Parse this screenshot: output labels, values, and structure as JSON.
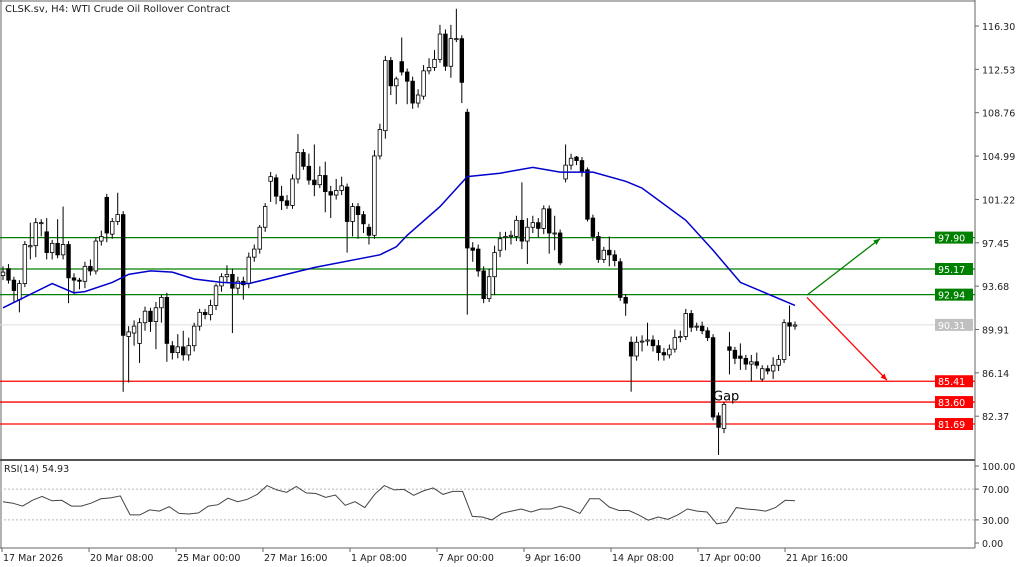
{
  "header": {
    "title": "CLSK.sv, H4:  WTI Crude Oil Rollover Contract"
  },
  "chart_data": {
    "type": "candlestick",
    "symbol": "CLSK.sv",
    "timeframe": "H4",
    "ylim": [
      77.5,
      118.5
    ],
    "y_ticks": [
      "116.30",
      "112.53",
      "108.76",
      "104.99",
      "101.22",
      "97.45",
      "93.68",
      "89.91",
      "86.14",
      "82.37"
    ],
    "x_ticks": [
      "17 Mar 2026",
      "20 Mar 08:00",
      "25 Mar 00:00",
      "27 Mar 16:00",
      "1 Apr 08:00",
      "7 Apr 00:00",
      "9 Apr 16:00",
      "14 Apr 08:00",
      "17 Apr 00:00",
      "21 Apr 16:00"
    ],
    "ohlc": [
      [
        94.6,
        95.4,
        94.2,
        94.9
      ],
      [
        95.2,
        95.6,
        93.9,
        94.2
      ],
      [
        94.2,
        94.5,
        92.3,
        93.3
      ],
      [
        92.5,
        94.2,
        91.4,
        93.9
      ],
      [
        93.9,
        97.6,
        93.6,
        97.3
      ],
      [
        97.1,
        99.2,
        96.0,
        97.2
      ],
      [
        97.2,
        99.6,
        96.2,
        99.2
      ],
      [
        99.2,
        99.5,
        98.0,
        99.2
      ],
      [
        98.4,
        99.6,
        96.0,
        96.6
      ],
      [
        96.6,
        97.7,
        96.0,
        97.4
      ],
      [
        97.4,
        99.5,
        96.1,
        96.4
      ],
      [
        96.4,
        100.6,
        96.0,
        97.3
      ],
      [
        97.3,
        97.6,
        92.2,
        94.4
      ],
      [
        94.4,
        94.8,
        93.0,
        94.2
      ],
      [
        94.2,
        94.4,
        93.4,
        94.1
      ],
      [
        94.1,
        95.8,
        93.5,
        95.4
      ],
      [
        95.4,
        96.0,
        94.6,
        95.0
      ],
      [
        95.0,
        97.9,
        94.7,
        97.6
      ],
      [
        97.6,
        98.5,
        97.2,
        98.0
      ],
      [
        101.4,
        101.7,
        97.5,
        98.3
      ],
      [
        98.2,
        99.6,
        97.8,
        99.3
      ],
      [
        99.3,
        101.8,
        99.0,
        99.9
      ],
      [
        99.9,
        100.2,
        84.5,
        89.4
      ],
      [
        89.3,
        90.2,
        85.3,
        89.7
      ],
      [
        89.6,
        90.7,
        88.5,
        90.2
      ],
      [
        88.7,
        90.9,
        87.0,
        90.5
      ],
      [
        90.5,
        91.9,
        89.8,
        91.5
      ],
      [
        91.5,
        91.8,
        89.7,
        90.6
      ],
      [
        90.6,
        92.3,
        88.2,
        91.8
      ],
      [
        91.8,
        92.9,
        90.5,
        92.7
      ],
      [
        92.7,
        93.1,
        87.1,
        88.7
      ],
      [
        88.5,
        88.9,
        87.3,
        87.9
      ],
      [
        87.9,
        89.5,
        87.4,
        88.4
      ],
      [
        88.4,
        89.8,
        87.2,
        87.7
      ],
      [
        87.7,
        89.2,
        87.2,
        88.5
      ],
      [
        88.5,
        90.5,
        88.0,
        90.2
      ],
      [
        90.2,
        91.7,
        89.8,
        91.4
      ],
      [
        91.4,
        91.7,
        90.8,
        91.2
      ],
      [
        91.2,
        92.5,
        90.7,
        92.0
      ],
      [
        92.0,
        93.9,
        91.6,
        93.7
      ],
      [
        93.7,
        94.8,
        93.2,
        94.5
      ],
      [
        94.5,
        95.5,
        94.0,
        94.7
      ],
      [
        94.7,
        95.2,
        89.6,
        93.5
      ],
      [
        93.5,
        94.5,
        93.0,
        94.1
      ],
      [
        94.1,
        94.5,
        92.5,
        93.8
      ],
      [
        93.9,
        96.6,
        93.5,
        96.2
      ],
      [
        96.2,
        97.3,
        95.8,
        96.9
      ],
      [
        96.9,
        99.0,
        96.5,
        98.8
      ],
      [
        98.8,
        100.9,
        98.4,
        100.6
      ],
      [
        102.8,
        103.6,
        101.0,
        103.2
      ],
      [
        103.1,
        103.4,
        100.8,
        101.5
      ],
      [
        101.5,
        102.4,
        100.3,
        101.1
      ],
      [
        101.1,
        101.6,
        100.4,
        100.7
      ],
      [
        100.7,
        103.4,
        100.4,
        103.0
      ],
      [
        103.0,
        106.9,
        102.6,
        105.3
      ],
      [
        105.3,
        105.6,
        103.8,
        104.1
      ],
      [
        104.1,
        105.2,
        102.5,
        102.9
      ],
      [
        102.9,
        106.0,
        101.5,
        102.5
      ],
      [
        102.5,
        104.1,
        102.2,
        103.3
      ],
      [
        103.3,
        104.5,
        100.1,
        101.9
      ],
      [
        101.9,
        102.4,
        99.6,
        101.6
      ],
      [
        101.6,
        103.0,
        101.2,
        102.0
      ],
      [
        102.0,
        103.2,
        101.6,
        102.4
      ],
      [
        102.3,
        102.6,
        96.6,
        99.3
      ],
      [
        99.3,
        100.9,
        98.0,
        100.6
      ],
      [
        100.6,
        100.9,
        97.8,
        99.9
      ],
      [
        99.9,
        100.2,
        98.3,
        99.1
      ],
      [
        98.8,
        99.1,
        97.3,
        98.1
      ],
      [
        98.1,
        105.5,
        97.8,
        105.0
      ],
      [
        105.0,
        107.8,
        104.7,
        107.3
      ],
      [
        107.2,
        113.7,
        106.5,
        113.3
      ],
      [
        113.3,
        113.6,
        110.3,
        111.1
      ],
      [
        111.1,
        111.9,
        109.5,
        111.7
      ],
      [
        113.2,
        115.3,
        112.0,
        112.3
      ],
      [
        112.3,
        112.6,
        109.5,
        111.5
      ],
      [
        111.5,
        111.9,
        109.1,
        109.6
      ],
      [
        109.6,
        110.8,
        109.2,
        110.3
      ],
      [
        110.2,
        112.9,
        109.9,
        112.4
      ],
      [
        112.4,
        113.5,
        112.1,
        112.7
      ],
      [
        112.7,
        114.2,
        112.4,
        113.4
      ],
      [
        113.4,
        116.4,
        113.1,
        115.6
      ],
      [
        115.6,
        116.0,
        112.4,
        112.8
      ],
      [
        112.8,
        116.4,
        111.8,
        115.2
      ],
      [
        115.2,
        117.8,
        114.9,
        115.2
      ],
      [
        115.2,
        115.5,
        109.6,
        111.4
      ],
      [
        108.8,
        109.1,
        91.2,
        97.0
      ],
      [
        97.0,
        97.5,
        95.8,
        96.8
      ],
      [
        96.9,
        97.3,
        94.5,
        95.0
      ],
      [
        95.0,
        95.4,
        92.2,
        92.6
      ],
      [
        92.6,
        95.2,
        92.3,
        94.5
      ],
      [
        94.5,
        97.2,
        92.9,
        96.6
      ],
      [
        96.8,
        98.4,
        96.2,
        97.8
      ],
      [
        97.9,
        98.4,
        96.8,
        98.0
      ],
      [
        98.0,
        98.5,
        97.3,
        98.1
      ],
      [
        98.0,
        99.8,
        97.6,
        99.4
      ],
      [
        99.4,
        102.7,
        96.9,
        97.6
      ],
      [
        97.6,
        99.6,
        95.6,
        98.8
      ],
      [
        98.8,
        99.8,
        98.3,
        99.2
      ],
      [
        99.2,
        99.6,
        97.9,
        98.7
      ],
      [
        98.7,
        100.7,
        98.2,
        100.4
      ],
      [
        100.4,
        100.7,
        96.5,
        98.3
      ],
      [
        98.3,
        99.8,
        96.8,
        98.3
      ],
      [
        98.3,
        98.6,
        95.5,
        95.7
      ],
      [
        103.0,
        106.0,
        102.7,
        104.2
      ],
      [
        104.2,
        105.2,
        103.8,
        104.8
      ],
      [
        104.9,
        105.0,
        104.2,
        104.6
      ],
      [
        104.6,
        104.9,
        103.2,
        103.6
      ],
      [
        103.8,
        104.0,
        99.3,
        99.5
      ],
      [
        99.6,
        99.9,
        97.6,
        98.0
      ],
      [
        98.0,
        98.4,
        95.7,
        96.0
      ],
      [
        96.0,
        97.1,
        95.7,
        96.8
      ],
      [
        96.8,
        98.0,
        95.4,
        96.4
      ],
      [
        96.4,
        96.8,
        95.4,
        95.9
      ],
      [
        95.8,
        96.1,
        92.4,
        92.7
      ],
      [
        92.7,
        93.0,
        91.1,
        92.2
      ],
      [
        88.8,
        89.3,
        84.5,
        87.6
      ],
      [
        87.6,
        89.3,
        87.2,
        88.8
      ],
      [
        88.9,
        89.4,
        88.0,
        88.9
      ],
      [
        88.9,
        90.5,
        88.5,
        89.0
      ],
      [
        89.0,
        89.4,
        88.0,
        88.5
      ],
      [
        88.5,
        89.0,
        87.2,
        87.9
      ],
      [
        87.9,
        88.3,
        87.2,
        87.7
      ],
      [
        87.7,
        88.6,
        87.4,
        88.2
      ],
      [
        88.2,
        89.9,
        87.9,
        89.2
      ],
      [
        89.2,
        89.8,
        88.8,
        89.3
      ],
      [
        89.3,
        91.7,
        89.0,
        91.3
      ],
      [
        91.3,
        91.6,
        89.7,
        90.1
      ],
      [
        90.2,
        90.5,
        89.8,
        90.2
      ],
      [
        90.2,
        90.6,
        89.5,
        89.8
      ],
      [
        89.8,
        90.1,
        88.9,
        89.2
      ],
      [
        89.2,
        89.5,
        82.0,
        82.3
      ],
      [
        82.4,
        82.7,
        79.0,
        81.4
      ],
      [
        81.3,
        83.6,
        80.9,
        83.4
      ],
      [
        88.4,
        89.7,
        86.0,
        88.1
      ],
      [
        88.1,
        88.4,
        86.9,
        87.4
      ],
      [
        87.6,
        88.7,
        86.4,
        87.4
      ],
      [
        87.4,
        87.7,
        86.4,
        86.9
      ],
      [
        86.9,
        87.7,
        85.4,
        87.1
      ],
      [
        87.1,
        87.9,
        86.5,
        86.8
      ],
      [
        85.6,
        86.8,
        85.4,
        86.5
      ],
      [
        86.5,
        86.8,
        86.0,
        86.3
      ],
      [
        86.3,
        87.5,
        85.6,
        86.8
      ],
      [
        86.8,
        87.7,
        86.3,
        87.3
      ],
      [
        87.3,
        90.8,
        87.0,
        90.5
      ],
      [
        90.5,
        92.0,
        87.6,
        90.2
      ],
      [
        90.2,
        90.6,
        89.9,
        90.3
      ]
    ],
    "moving_average": {
      "color": "#0000cc",
      "points": [
        [
          0,
          91.8
        ],
        [
          9,
          93.9
        ],
        [
          13,
          93.1
        ],
        [
          15,
          93.2
        ],
        [
          20,
          94.0
        ],
        [
          23,
          94.7
        ],
        [
          27,
          95.0
        ],
        [
          31,
          94.9
        ],
        [
          35,
          94.3
        ],
        [
          40,
          94.0
        ],
        [
          45,
          93.9
        ],
        [
          57,
          95.3
        ],
        [
          69,
          96.4
        ],
        [
          72,
          97.1
        ],
        [
          74,
          98.1
        ],
        [
          80,
          100.6
        ],
        [
          85,
          103.2
        ],
        [
          91,
          103.5
        ],
        [
          97,
          104.0
        ],
        [
          102,
          103.6
        ],
        [
          108,
          103.6
        ],
        [
          114,
          102.8
        ],
        [
          117,
          102.2
        ],
        [
          125,
          99.4
        ],
        [
          130,
          96.8
        ],
        [
          135,
          94.0
        ],
        [
          139,
          93.2
        ],
        [
          145,
          92.0
        ]
      ]
    },
    "levels": [
      {
        "value": 97.9,
        "label": "97.90",
        "color": "#008000"
      },
      {
        "value": 95.17,
        "label": "95.17",
        "color": "#008000"
      },
      {
        "value": 92.94,
        "label": "92.94",
        "color": "#008000"
      },
      {
        "value": 85.41,
        "label": "85.41",
        "color": "#ff0000"
      },
      {
        "value": 83.6,
        "label": "83.60",
        "color": "#ff0000"
      },
      {
        "value": 81.69,
        "label": "81.69",
        "color": "#ff0000"
      }
    ],
    "current_price": {
      "value": 90.31,
      "label": "90.31",
      "color": "#c0c0c0"
    },
    "annotation": {
      "text": "Gap",
      "price": 84.0
    },
    "arrows": [
      {
        "direction": "up",
        "color": "#008000",
        "from_price": 92.9,
        "to_price": 97.8
      },
      {
        "direction": "down",
        "color": "#ff0000",
        "from_price": 92.7,
        "to_price": 85.5
      }
    ],
    "rsi": {
      "label": "RSI(14) 54.93",
      "period": 14,
      "ylim": [
        0,
        100
      ],
      "y_ticks": [
        "100.00",
        "70.00",
        "30.00",
        "0.00"
      ],
      "levels": [
        70,
        30
      ],
      "values": [
        53.6,
        51.7,
        47.9,
        55.5,
        60.5,
        54.8,
        55.5,
        47.9,
        47.9,
        51.7,
        57.4,
        58.6,
        61.2,
        36.5,
        36.5,
        43,
        41.4,
        47.1,
        38.4,
        37.6,
        39.1,
        47.9,
        49.8,
        58.2,
        53.6,
        56.7,
        63.1,
        74.6,
        68.9,
        65.8,
        73.4,
        65,
        64.3,
        59.3,
        62.4,
        49,
        53.6,
        46,
        63.1,
        74.6,
        68.9,
        69.6,
        62,
        67.7,
        71.5,
        63.1,
        67,
        67,
        34.6,
        33.8,
        30,
        38.4,
        41.4,
        44.1,
        40.3,
        44.1,
        44.1,
        47.9,
        44.1,
        38.4,
        57.4,
        57.4,
        46.8,
        42.2,
        42.2,
        36.5,
        29.6,
        33.8,
        30.8,
        36.5,
        44.1,
        41.4,
        40.3,
        25,
        27,
        46,
        44.1,
        43.3,
        41.4,
        46,
        55.5,
        54.93
      ]
    }
  }
}
